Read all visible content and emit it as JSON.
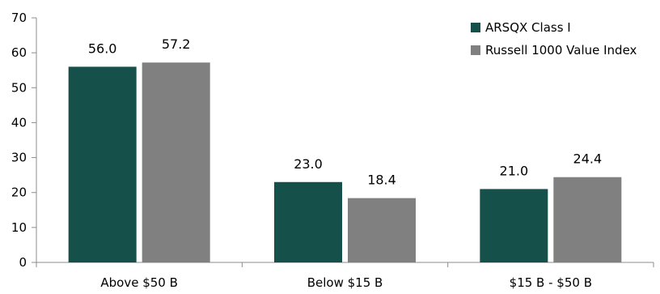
{
  "chart_data": {
    "type": "bar",
    "title": "",
    "xlabel": "",
    "ylabel": "",
    "ylim": [
      0,
      70
    ],
    "yticks": [
      0,
      10,
      20,
      30,
      40,
      50,
      60,
      70
    ],
    "grid": false,
    "legend_position": "top-right",
    "categories": [
      "Above $50 B",
      "Below $15 B",
      "$15 B - $50 B"
    ],
    "series": [
      {
        "name": "ARSQX Class I",
        "color": "#15514a",
        "values": [
          56.0,
          23.0,
          21.0
        ],
        "labels": [
          "56.0",
          "23.0",
          "21.0"
        ]
      },
      {
        "name": "Russell 1000 Value Index",
        "color": "#808080",
        "values": [
          57.2,
          18.4,
          24.4
        ],
        "labels": [
          "57.2",
          "18.4",
          "24.4"
        ]
      }
    ]
  }
}
